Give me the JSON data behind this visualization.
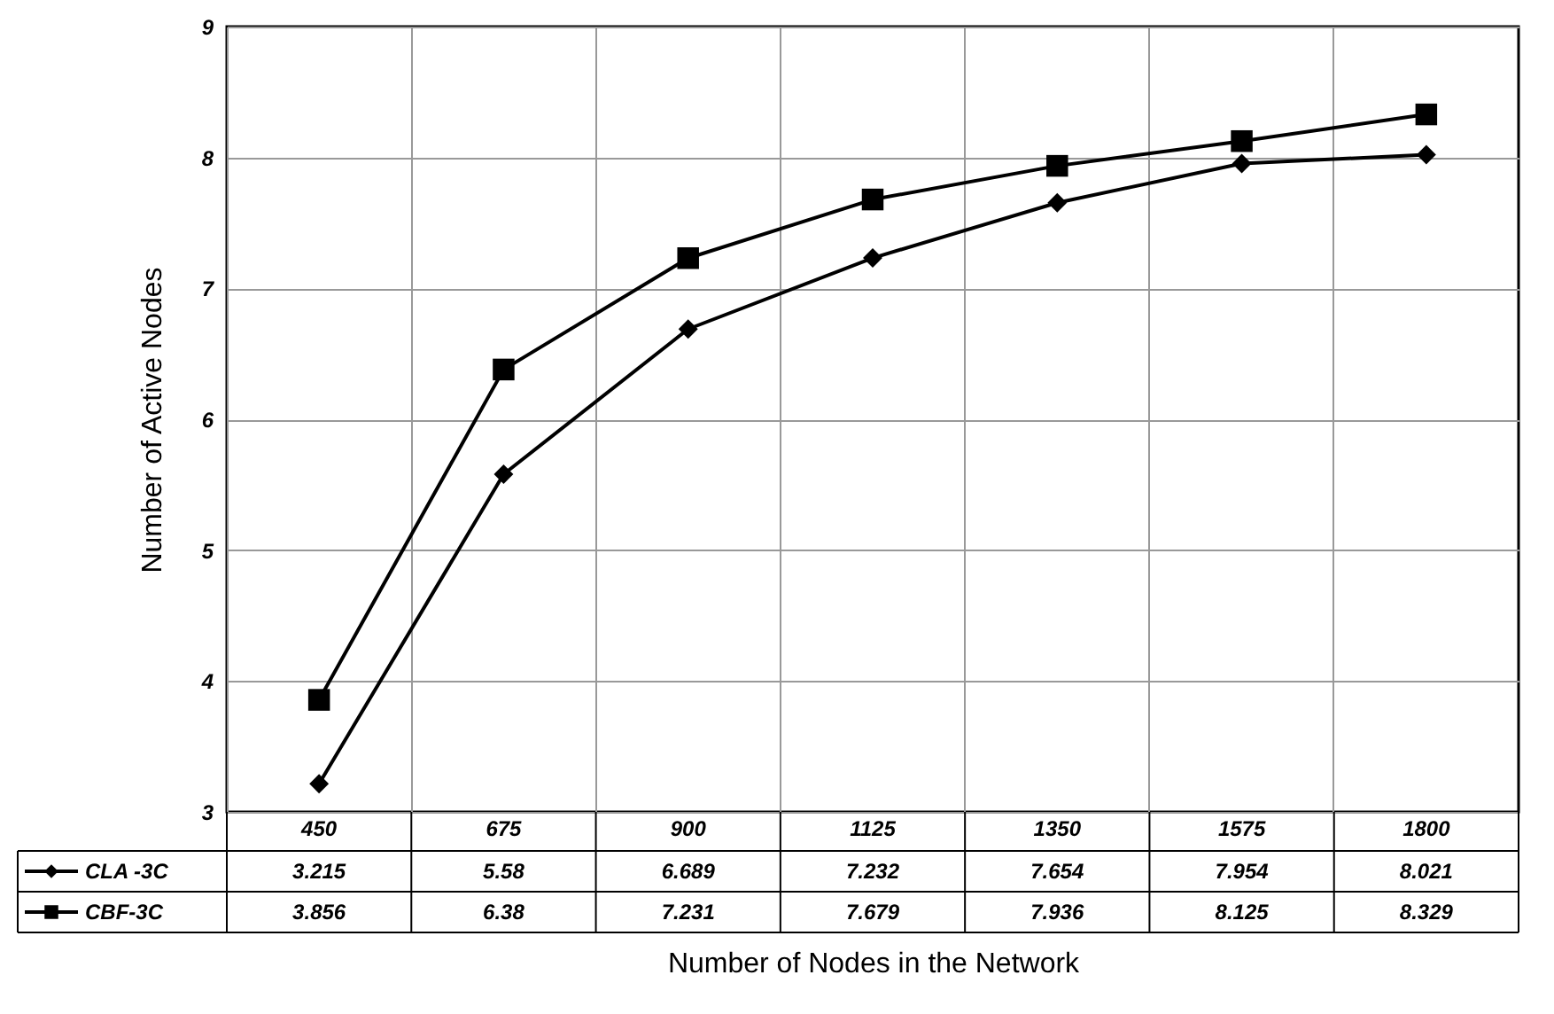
{
  "chart_data": {
    "type": "line",
    "xlabel": "Number of Nodes in the Network",
    "ylabel": "Number of Active Nodes",
    "categories": [
      "450",
      "675",
      "900",
      "1125",
      "1350",
      "1575",
      "1800"
    ],
    "series": [
      {
        "name": "CLA -3C",
        "color": "#000000",
        "marker": "diamond",
        "values": [
          3.215,
          5.58,
          6.689,
          7.232,
          7.654,
          7.954,
          8.021
        ]
      },
      {
        "name": "CBF-3C",
        "color": "#000000",
        "marker": "square",
        "values": [
          3.856,
          6.38,
          7.231,
          7.679,
          7.936,
          8.125,
          8.329
        ]
      }
    ],
    "ylim": [
      3,
      9
    ],
    "yticks": [
      3,
      4,
      5,
      6,
      7,
      8,
      9
    ],
    "grid": true,
    "legend": "bottom left",
    "data_labels": true,
    "line_style": "solid"
  }
}
